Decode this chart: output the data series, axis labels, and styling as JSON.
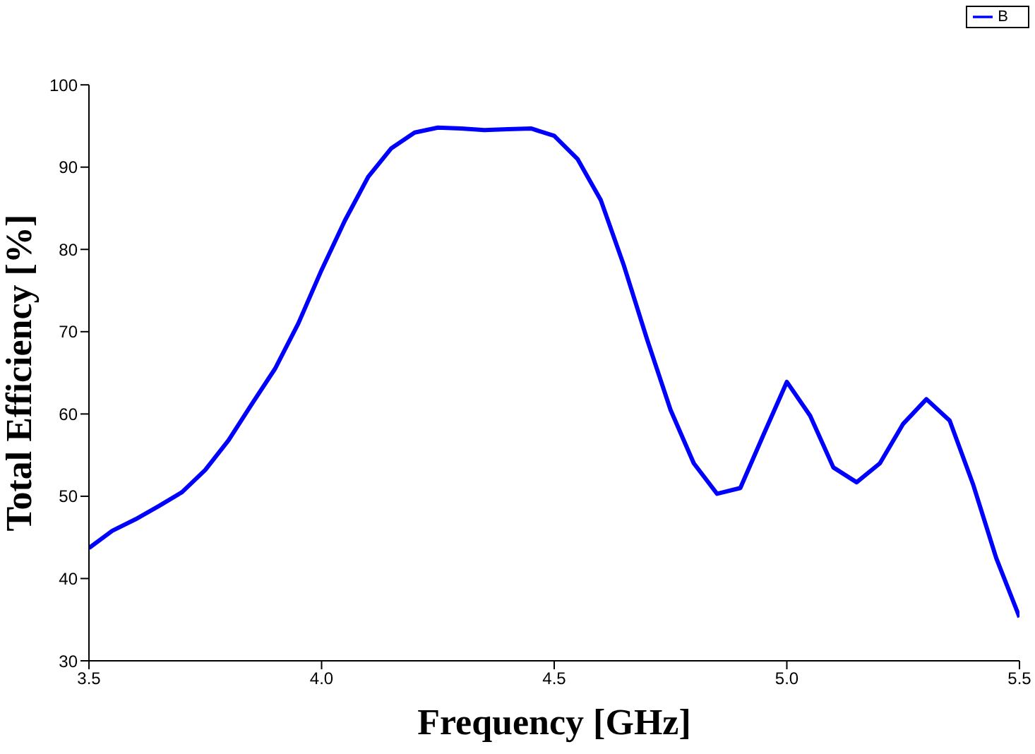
{
  "chart_data": {
    "type": "line",
    "xlabel": "Frequency [GHz]",
    "ylabel": "Total Efficiency [%]",
    "x": [
      3.5,
      3.55,
      3.6,
      3.65,
      3.7,
      3.75,
      3.8,
      3.85,
      3.9,
      3.95,
      4.0,
      4.05,
      4.1,
      4.15,
      4.2,
      4.25,
      4.3,
      4.35,
      4.4,
      4.45,
      4.5,
      4.55,
      4.6,
      4.65,
      4.7,
      4.75,
      4.8,
      4.85,
      4.9,
      4.95,
      5.0,
      5.05,
      5.1,
      5.15,
      5.2,
      5.25,
      5.3,
      5.35,
      5.4,
      5.45,
      5.5
    ],
    "series": [
      {
        "name": "B",
        "color": "#0000ff",
        "values": [
          43.7,
          45.8,
          47.2,
          48.8,
          50.5,
          53.2,
          56.8,
          61.2,
          65.5,
          71,
          77.5,
          83.5,
          88.8,
          92.3,
          94.2,
          94.8,
          94.7,
          94.5,
          94.6,
          94.7,
          93.8,
          91,
          86,
          78,
          69,
          60.5,
          54,
          50.3,
          51,
          57.5,
          63.9,
          59.8,
          53.5,
          51.7,
          54,
          58.8,
          61.8,
          59.2,
          51.5,
          42.5,
          35.3
        ]
      }
    ],
    "xlim": [
      3.5,
      5.5
    ],
    "xticks": [
      3.5,
      {
        "value": 4,
        "label": "4.0"
      },
      4.5,
      {
        "value": 5,
        "label": "5.0"
      },
      5.5
    ],
    "ylim": [
      30,
      100
    ],
    "yticks": [
      30,
      40,
      50,
      60,
      70,
      80,
      90,
      100
    ],
    "grid": false,
    "legend": "top right",
    "marker": "none",
    "line_style": "solid"
  }
}
